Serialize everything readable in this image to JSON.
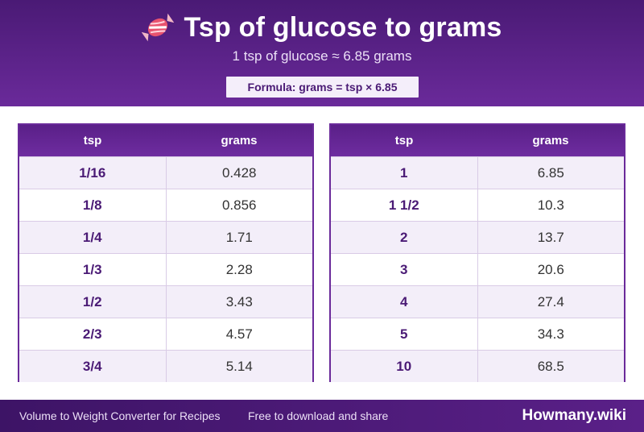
{
  "header": {
    "icon": "candy-icon",
    "title": "Tsp of glucose to grams",
    "subtitle": "1 tsp of glucose ≈ 6.85 grams",
    "formula": "Formula: grams = tsp × 6.85"
  },
  "tables": {
    "left": {
      "col_tsp": "tsp",
      "col_grams": "grams",
      "rows": [
        {
          "tsp": "1/16",
          "grams": "0.428"
        },
        {
          "tsp": "1/8",
          "grams": "0.856"
        },
        {
          "tsp": "1/4",
          "grams": "1.71"
        },
        {
          "tsp": "1/3",
          "grams": "2.28"
        },
        {
          "tsp": "1/2",
          "grams": "3.43"
        },
        {
          "tsp": "2/3",
          "grams": "4.57"
        },
        {
          "tsp": "3/4",
          "grams": "5.14"
        }
      ]
    },
    "right": {
      "col_tsp": "tsp",
      "col_grams": "grams",
      "rows": [
        {
          "tsp": "1",
          "grams": "6.85"
        },
        {
          "tsp": "1 1/2",
          "grams": "10.3"
        },
        {
          "tsp": "2",
          "grams": "13.7"
        },
        {
          "tsp": "3",
          "grams": "20.6"
        },
        {
          "tsp": "4",
          "grams": "27.4"
        },
        {
          "tsp": "5",
          "grams": "34.3"
        },
        {
          "tsp": "10",
          "grams": "68.5"
        }
      ]
    }
  },
  "footer": {
    "left_text": "Volume to Weight Converter for Recipes",
    "mid_text": "Free to download and share",
    "brand": "Howmany.wiki"
  },
  "colors": {
    "brand_purple": "#6a2a9a",
    "dark_purple": "#4a1a75",
    "row_alt": "#f3eef9"
  }
}
